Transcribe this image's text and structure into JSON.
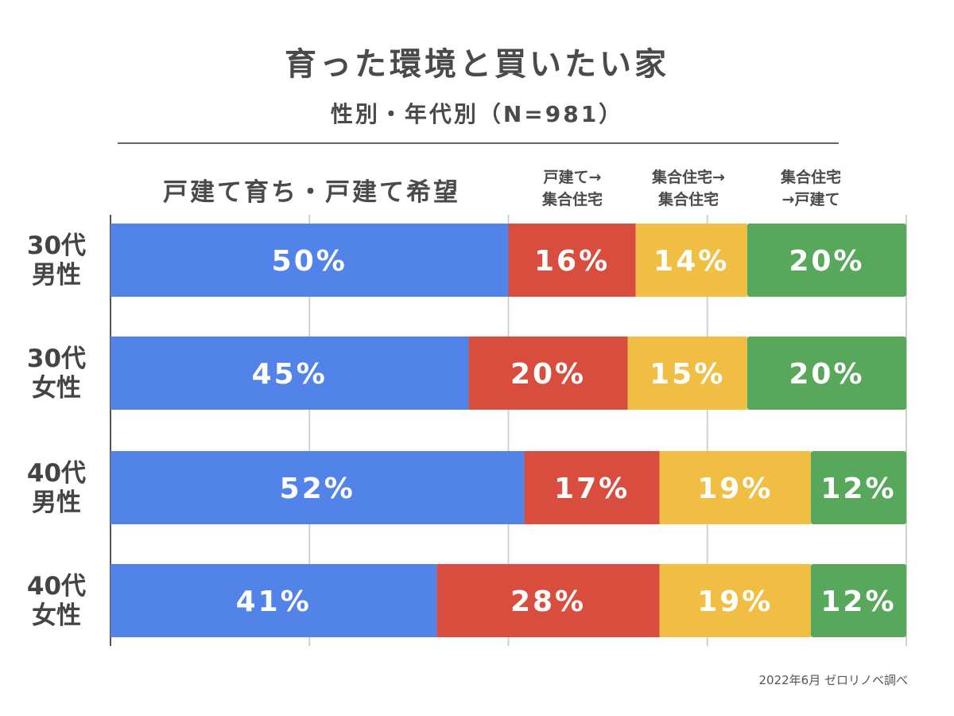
{
  "title": "育った環境と買いたい家",
  "subtitle": "性別・年代別（N=981）",
  "footer": "2022年6月 ゼロリノベ調べ",
  "chart_data": {
    "type": "bar",
    "orientation": "horizontal",
    "stacked": true,
    "normalized": true,
    "title": "育った環境と買いたい家",
    "subtitle": "性別・年代別（N=981）",
    "xlim": [
      0,
      100
    ],
    "grid": true,
    "legend_placement": "top",
    "categories": [
      [
        "30代",
        "男性"
      ],
      [
        "30代",
        "女性"
      ],
      [
        "40代",
        "男性"
      ],
      [
        "40代",
        "女性"
      ]
    ],
    "series": [
      {
        "name": "戸建て育ち・戸建て希望",
        "legend_lines": [
          "戸建て育ち・戸建て希望"
        ],
        "color": "#5183E9",
        "values": [
          50,
          45,
          52,
          41
        ],
        "labels": [
          "50%",
          "45%",
          "52%",
          "41%"
        ]
      },
      {
        "name": "戸建て→集合住宅",
        "legend_lines": [
          "戸建て→",
          "集合住宅"
        ],
        "color": "#D84D3E",
        "values": [
          16,
          20,
          17,
          28
        ],
        "labels": [
          "16%",
          "20%",
          "17%",
          "28%"
        ]
      },
      {
        "name": "集合住宅→集合住宅",
        "legend_lines": [
          "集合住宅→",
          "集合住宅"
        ],
        "color": "#F0BE43",
        "values": [
          14,
          15,
          19,
          19
        ],
        "labels": [
          "14%",
          "15%",
          "19%",
          "19%"
        ]
      },
      {
        "name": "集合住宅→戸建て",
        "legend_lines": [
          "集合住宅",
          "→戸建て"
        ],
        "color": "#58A85C",
        "values": [
          20,
          20,
          12,
          12
        ],
        "labels": [
          "20%",
          "20%",
          "12%",
          "12%"
        ]
      }
    ]
  }
}
